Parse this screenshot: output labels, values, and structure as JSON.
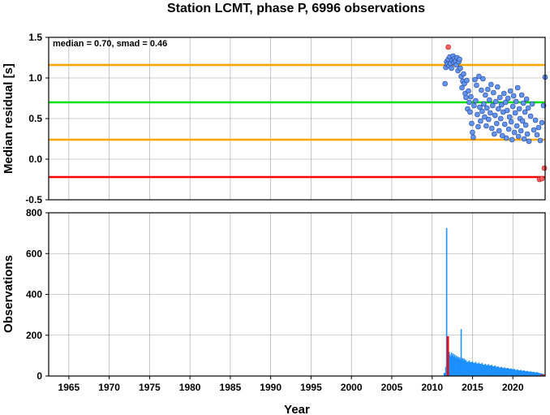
{
  "chart_data": [
    {
      "type": "scatter",
      "title": "Station LCMT, phase P, 6996 observations",
      "ylabel": "Median residual [s]",
      "annotation": "median = 0.70, smad = 0.46",
      "xlim": [
        1962.5,
        2024
      ],
      "ylim": [
        -0.5,
        1.5
      ],
      "x_ticks": [
        1965,
        1970,
        1975,
        1980,
        1985,
        1990,
        1995,
        2000,
        2005,
        2010,
        2015,
        2020
      ],
      "y_ticks": [
        -0.5,
        0.0,
        0.5,
        1.0,
        1.5
      ],
      "y_tick_labels": [
        "-0.5",
        "0.0",
        "0.5",
        "1.0",
        "1.5"
      ],
      "grid": true,
      "reference_lines": [
        {
          "value": 1.16,
          "color": "#ffa500",
          "role": "median + smad"
        },
        {
          "value": 0.7,
          "color": "#00e000",
          "role": "median"
        },
        {
          "value": 0.24,
          "color": "#ffa500",
          "role": "median - smad"
        },
        {
          "value": -0.22,
          "color": "#ff0000",
          "role": "lower limit"
        }
      ],
      "point_color": "#6495ed",
      "outlier_color": "#ff6060",
      "points": [
        [
          2011.6,
          0.93
        ],
        [
          2011.7,
          1.13
        ],
        [
          2011.8,
          1.2
        ],
        [
          2011.9,
          1.17
        ],
        [
          2012.0,
          1.23
        ],
        [
          2012.1,
          1.15
        ],
        [
          2012.2,
          1.26
        ],
        [
          2012.3,
          1.18
        ],
        [
          2012.4,
          1.12
        ],
        [
          2012.5,
          1.22
        ],
        [
          2012.6,
          1.27
        ],
        [
          2012.7,
          1.19
        ],
        [
          2012.8,
          1.24
        ],
        [
          2012.9,
          1.21
        ],
        [
          2013.0,
          1.16
        ],
        [
          2013.1,
          1.25
        ],
        [
          2013.2,
          1.09
        ],
        [
          2013.3,
          1.2
        ],
        [
          2013.4,
          1.23
        ],
        [
          2013.5,
          1.12
        ],
        [
          2013.6,
          1.02
        ],
        [
          2013.7,
          0.88
        ],
        [
          2013.8,
          0.96
        ],
        [
          2013.9,
          1.05
        ],
        [
          2014.0,
          0.93
        ],
        [
          2014.1,
          0.81
        ],
        [
          2014.2,
          0.76
        ],
        [
          2014.3,
          0.97
        ],
        [
          2014.4,
          0.62
        ],
        [
          2014.5,
          0.84
        ],
        [
          2014.6,
          0.7
        ],
        [
          2014.7,
          0.58
        ],
        [
          2014.8,
          0.77
        ],
        [
          2014.9,
          0.44
        ],
        [
          2015.0,
          0.33
        ],
        [
          2015.1,
          0.27
        ],
        [
          2015.2,
          0.66
        ],
        [
          2015.3,
          0.98
        ],
        [
          2015.4,
          0.72
        ],
        [
          2015.5,
          0.91
        ],
        [
          2015.6,
          0.55
        ],
        [
          2015.7,
          0.4
        ],
        [
          2015.8,
          1.02
        ],
        [
          2015.9,
          0.64
        ],
        [
          2016.0,
          0.47
        ],
        [
          2016.1,
          0.85
        ],
        [
          2016.2,
          0.59
        ],
        [
          2016.3,
          0.99
        ],
        [
          2016.4,
          0.68
        ],
        [
          2016.5,
          0.52
        ],
        [
          2016.6,
          0.79
        ],
        [
          2016.7,
          0.41
        ],
        [
          2016.8,
          0.63
        ],
        [
          2016.9,
          0.86
        ],
        [
          2017.0,
          0.49
        ],
        [
          2017.1,
          0.73
        ],
        [
          2017.2,
          0.57
        ],
        [
          2017.3,
          0.92
        ],
        [
          2017.4,
          0.38
        ],
        [
          2017.5,
          0.66
        ],
        [
          2017.6,
          0.82
        ],
        [
          2017.7,
          0.31
        ],
        [
          2017.8,
          0.54
        ],
        [
          2017.9,
          0.71
        ],
        [
          2018.0,
          0.44
        ],
        [
          2018.1,
          0.89
        ],
        [
          2018.2,
          0.62
        ],
        [
          2018.3,
          0.35
        ],
        [
          2018.4,
          0.76
        ],
        [
          2018.5,
          0.5
        ],
        [
          2018.6,
          0.67
        ],
        [
          2018.7,
          0.29
        ],
        [
          2018.8,
          0.58
        ],
        [
          2018.9,
          0.81
        ],
        [
          2019.0,
          0.43
        ],
        [
          2019.1,
          0.7
        ],
        [
          2019.2,
          0.26
        ],
        [
          2019.3,
          0.6
        ],
        [
          2019.4,
          0.75
        ],
        [
          2019.5,
          0.37
        ],
        [
          2019.6,
          0.52
        ],
        [
          2019.7,
          0.84
        ],
        [
          2019.8,
          0.46
        ],
        [
          2019.9,
          0.24
        ],
        [
          2020.0,
          0.65
        ],
        [
          2020.1,
          0.78
        ],
        [
          2020.2,
          0.33
        ],
        [
          2020.3,
          0.57
        ],
        [
          2020.4,
          0.71
        ],
        [
          2020.5,
          0.41
        ],
        [
          2020.6,
          0.88
        ],
        [
          2020.7,
          0.28
        ],
        [
          2020.8,
          0.62
        ],
        [
          2020.9,
          0.5
        ],
        [
          2021.0,
          0.35
        ],
        [
          2021.1,
          0.79
        ],
        [
          2021.2,
          0.47
        ],
        [
          2021.3,
          0.69
        ],
        [
          2021.4,
          0.25
        ],
        [
          2021.5,
          0.58
        ],
        [
          2021.6,
          0.42
        ],
        [
          2021.7,
          0.74
        ],
        [
          2021.8,
          0.31
        ],
        [
          2021.9,
          0.63
        ],
        [
          2022.0,
          0.22
        ],
        [
          2022.2,
          0.53
        ],
        [
          2022.4,
          0.68
        ],
        [
          2022.6,
          0.36
        ],
        [
          2022.8,
          0.48
        ],
        [
          2023.0,
          0.3
        ],
        [
          2023.2,
          0.39
        ],
        [
          2023.4,
          0.23
        ],
        [
          2023.6,
          0.45
        ],
        [
          2023.8,
          0.66
        ],
        [
          2024.0,
          1.01
        ]
      ],
      "outliers": [
        [
          2012.0,
          1.38
        ],
        [
          2023.3,
          -0.25
        ],
        [
          2023.6,
          -0.24
        ],
        [
          2023.9,
          -0.11
        ]
      ]
    },
    {
      "type": "bar",
      "xlabel": "Year",
      "ylabel": "Observations",
      "xlim": [
        1962.5,
        2024
      ],
      "ylim": [
        0,
        800
      ],
      "x_ticks": [
        1965,
        1970,
        1975,
        1980,
        1985,
        1990,
        1995,
        2000,
        2005,
        2010,
        2015,
        2020
      ],
      "y_ticks": [
        0,
        200,
        400,
        600,
        800
      ],
      "grid": true,
      "bar_color": "#1e90ff",
      "outlier_bar_color": "#ff0000",
      "bars": [
        [
          2011.5,
          15
        ],
        [
          2011.7,
          45
        ],
        [
          2011.8,
          725
        ],
        [
          2011.9,
          90
        ],
        [
          2012.0,
          110
        ],
        [
          2012.1,
          120
        ],
        [
          2012.2,
          105
        ],
        [
          2012.3,
          95
        ],
        [
          2012.4,
          115
        ],
        [
          2012.5,
          100
        ],
        [
          2012.6,
          110
        ],
        [
          2012.7,
          95
        ],
        [
          2012.8,
          105
        ],
        [
          2012.9,
          90
        ],
        [
          2013.0,
          100
        ],
        [
          2013.1,
          88
        ],
        [
          2013.2,
          95
        ],
        [
          2013.3,
          85
        ],
        [
          2013.4,
          92
        ],
        [
          2013.5,
          80
        ],
        [
          2013.6,
          230
        ],
        [
          2013.7,
          82
        ],
        [
          2013.8,
          88
        ],
        [
          2013.9,
          75
        ],
        [
          2014.0,
          85
        ],
        [
          2014.2,
          78
        ],
        [
          2014.4,
          70
        ],
        [
          2014.6,
          76
        ],
        [
          2014.8,
          68
        ],
        [
          2015.0,
          72
        ],
        [
          2015.2,
          65
        ],
        [
          2015.4,
          70
        ],
        [
          2015.6,
          62
        ],
        [
          2015.8,
          66
        ],
        [
          2016.0,
          60
        ],
        [
          2016.2,
          64
        ],
        [
          2016.4,
          56
        ],
        [
          2016.6,
          60
        ],
        [
          2016.8,
          54
        ],
        [
          2017.0,
          58
        ],
        [
          2017.2,
          52
        ],
        [
          2017.4,
          55
        ],
        [
          2017.6,
          48
        ],
        [
          2017.8,
          52
        ],
        [
          2018.0,
          45
        ],
        [
          2018.2,
          48
        ],
        [
          2018.4,
          42
        ],
        [
          2018.6,
          45
        ],
        [
          2018.8,
          40
        ],
        [
          2019.0,
          42
        ],
        [
          2019.2,
          38
        ],
        [
          2019.4,
          40
        ],
        [
          2019.6,
          35
        ],
        [
          2019.8,
          37
        ],
        [
          2020.0,
          33
        ],
        [
          2020.2,
          35
        ],
        [
          2020.4,
          30
        ],
        [
          2020.6,
          32
        ],
        [
          2020.8,
          28
        ],
        [
          2021.0,
          30
        ],
        [
          2021.2,
          26
        ],
        [
          2021.4,
          28
        ],
        [
          2021.6,
          24
        ],
        [
          2021.8,
          25
        ],
        [
          2022.0,
          22
        ],
        [
          2022.2,
          23
        ],
        [
          2022.4,
          20
        ],
        [
          2022.6,
          21
        ],
        [
          2022.8,
          18
        ],
        [
          2023.0,
          19
        ],
        [
          2023.2,
          16
        ],
        [
          2023.4,
          14
        ],
        [
          2023.6,
          12
        ],
        [
          2023.8,
          10
        ]
      ],
      "outlier_bars": [
        [
          2011.9,
          195
        ],
        [
          2012.0,
          195
        ],
        [
          2023.5,
          8
        ],
        [
          2023.8,
          8
        ]
      ]
    }
  ]
}
